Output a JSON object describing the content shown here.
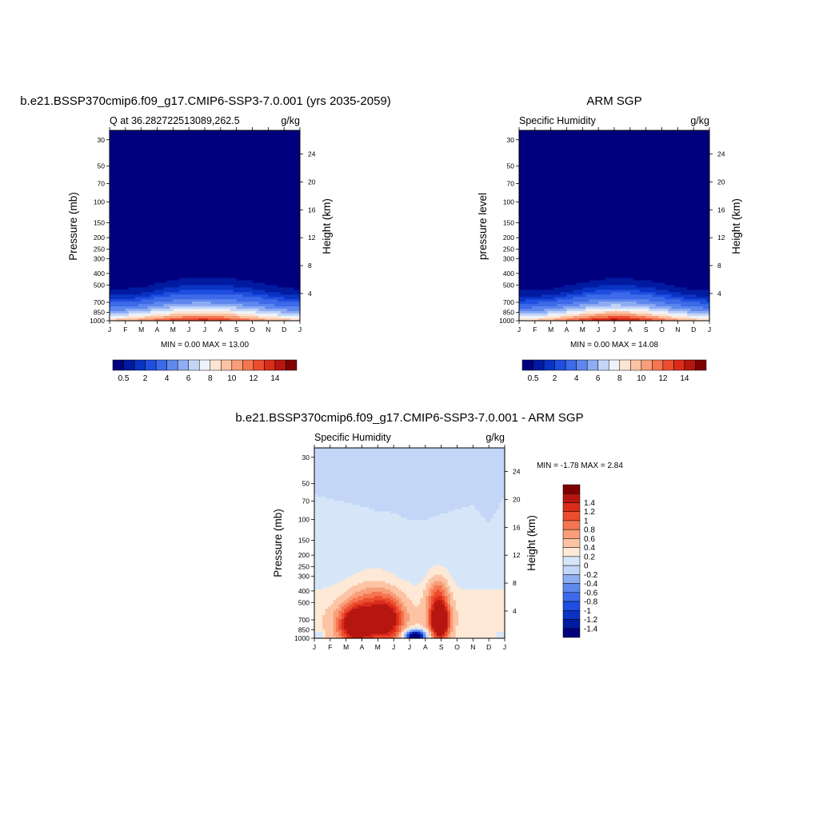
{
  "figure": {
    "panels": [
      {
        "title": "b.e21.BSSP370cmip6.f09_g17.CMIP6-SSP3-7.0.001 (yrs 2035-2059)",
        "left_label": "Q at 36.282722513089,262.5",
        "right_label": "g/kg",
        "ylabel": "Pressure (mb)",
        "y2label": "Height (km)",
        "stats": "MIN =   0.00 MAX =  13.00"
      },
      {
        "title": "ARM SGP",
        "left_label": "Specific Humidity",
        "right_label": "g/kg",
        "ylabel": "pressure level",
        "y2label": "Height (km)",
        "stats": "MIN =   0.00 MAX =  14.08"
      },
      {
        "title": "b.e21.BSSP370cmip6.f09_g17.CMIP6-SSP3-7.0.001 - ARM SGP",
        "left_label": "Specific Humidity",
        "right_label": "g/kg",
        "ylabel": "Pressure (mb)",
        "y2label": "Height (km)",
        "stats": "MIN =  -1.78 MAX =   2.84"
      }
    ]
  },
  "chart_data": [
    {
      "type": "heatmap",
      "title": "b.e21.BSSP370cmip6.f09_g17.CMIP6-SSP3-7.0.001 (yrs 2035-2059)",
      "variable": "Q at 36.282722513089,262.5",
      "units": "g/kg",
      "x_ticks": [
        "J",
        "F",
        "M",
        "A",
        "M",
        "J",
        "J",
        "A",
        "S",
        "O",
        "N",
        "D",
        "J"
      ],
      "y_ticks": [
        30,
        50,
        70,
        100,
        150,
        200,
        250,
        300,
        400,
        500,
        700,
        850,
        1000
      ],
      "y_scale": "log",
      "y_reversed": true,
      "y2_ticks": [
        4,
        8,
        12,
        16,
        20,
        24
      ],
      "ylabel": "Pressure (mb)",
      "y2label": "Height (km)",
      "min": 0.0,
      "max": 13.0,
      "surface_q": [
        8.5,
        9.0,
        10.0,
        11.0,
        12.0,
        12.8,
        13.0,
        12.6,
        11.5,
        10.5,
        9.5,
        8.8,
        8.5
      ],
      "moist_top_mb": [
        430,
        430,
        420,
        360,
        320,
        300,
        300,
        300,
        300,
        320,
        360,
        400,
        430
      ],
      "colorbar": {
        "levels": [
          0.5,
          1,
          1.5,
          2,
          3,
          4,
          5,
          6,
          7,
          8,
          9,
          10,
          11,
          12,
          13,
          14
        ],
        "tick_labels": [
          "0.5",
          "2",
          "4",
          "6",
          "8",
          "10",
          "12",
          "14"
        ],
        "colors": [
          "#00007f",
          "#001aa0",
          "#0a32c3",
          "#1f4fe0",
          "#3c6ae8",
          "#5f88ee",
          "#8fadf2",
          "#c3d6f8",
          "#eef3fb",
          "#fde5d2",
          "#fcc3a4",
          "#f89e7a",
          "#f47650",
          "#ec4d2e",
          "#db2c1a",
          "#b61610",
          "#7f0000"
        ]
      }
    },
    {
      "type": "heatmap",
      "title": "ARM SGP",
      "variable": "Specific Humidity",
      "units": "g/kg",
      "x_ticks": [
        "J",
        "F",
        "M",
        "A",
        "M",
        "J",
        "J",
        "A",
        "S",
        "O",
        "N",
        "D",
        "J"
      ],
      "y_ticks": [
        30,
        50,
        70,
        100,
        150,
        200,
        250,
        300,
        400,
        500,
        700,
        850,
        1000
      ],
      "y_scale": "log",
      "y_reversed": true,
      "y2_ticks": [
        4,
        8,
        12,
        16,
        20,
        24
      ],
      "ylabel": "pressure level",
      "y2label": "Height (km)",
      "min": 0.0,
      "max": 14.08,
      "surface_q": [
        8.0,
        8.5,
        9.5,
        10.8,
        12.2,
        13.5,
        14.08,
        13.8,
        12.5,
        11.0,
        9.8,
        8.8,
        8.0
      ],
      "moist_top_mb": [
        450,
        450,
        440,
        400,
        360,
        330,
        320,
        320,
        330,
        360,
        400,
        440,
        450
      ],
      "colorbar": {
        "levels": [
          0.5,
          1,
          1.5,
          2,
          3,
          4,
          5,
          6,
          7,
          8,
          9,
          10,
          11,
          12,
          13,
          14
        ],
        "tick_labels": [
          "0.5",
          "2",
          "4",
          "6",
          "8",
          "10",
          "12",
          "14"
        ],
        "colors": [
          "#00007f",
          "#001aa0",
          "#0a32c3",
          "#1f4fe0",
          "#3c6ae8",
          "#5f88ee",
          "#8fadf2",
          "#c3d6f8",
          "#eef3fb",
          "#fde5d2",
          "#fcc3a4",
          "#f89e7a",
          "#f47650",
          "#ec4d2e",
          "#db2c1a",
          "#b61610",
          "#7f0000"
        ]
      }
    },
    {
      "type": "heatmap",
      "title": "b.e21.BSSP370cmip6.f09_g17.CMIP6-SSP3-7.0.001 - ARM SGP",
      "variable": "Specific Humidity",
      "units": "g/kg",
      "x_ticks": [
        "J",
        "F",
        "M",
        "A",
        "M",
        "J",
        "J",
        "A",
        "S",
        "O",
        "N",
        "D",
        "J"
      ],
      "y_ticks": [
        30,
        50,
        70,
        100,
        150,
        200,
        250,
        300,
        400,
        500,
        700,
        850,
        1000
      ],
      "y_scale": "log",
      "y_reversed": true,
      "y2_ticks": [
        4,
        8,
        12,
        16,
        20,
        24
      ],
      "ylabel": "Pressure (mb)",
      "y2label": "Height (km)",
      "min": -1.78,
      "max": 2.84,
      "upper_boundary_mb": [
        62,
        67,
        72,
        78,
        85,
        88,
        100,
        102,
        90,
        82,
        75,
        108,
        62
      ],
      "colorbar": {
        "levels": [
          -1.4,
          -1.2,
          -1,
          -0.8,
          -0.6,
          -0.4,
          -0.2,
          0,
          0.2,
          0.4,
          0.6,
          0.8,
          1,
          1.2,
          1.4
        ],
        "tick_labels": [
          "-1.4",
          "-1.2",
          "-1",
          "-0.8",
          "-0.6",
          "-0.4",
          "-0.2",
          "0",
          "0.2",
          "0.4",
          "0.6",
          "0.8",
          "1",
          "1.2",
          "1.4"
        ],
        "colors": [
          "#00007f",
          "#001aa0",
          "#0a32c3",
          "#1f4fe0",
          "#3c6ae8",
          "#5f88ee",
          "#8fadf2",
          "#c3d6f8",
          "#d6e6f8",
          "#fde9d6",
          "#fcc3a4",
          "#f89e7a",
          "#f47650",
          "#ec4d2e",
          "#db2c1a",
          "#b61610",
          "#7f0000"
        ]
      }
    }
  ]
}
